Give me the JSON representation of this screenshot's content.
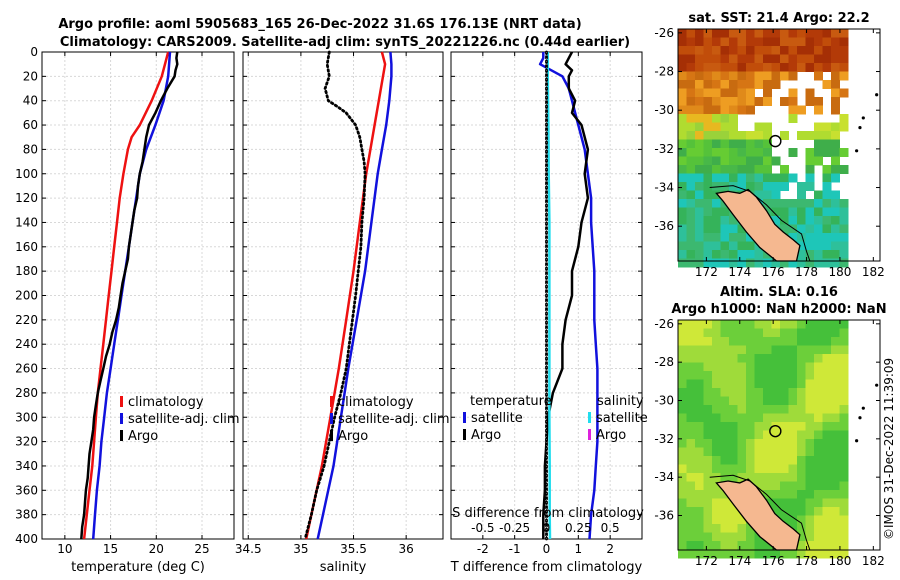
{
  "title": {
    "line1": "Argo profile: aoml 5905683_165 26-Dec-2022 31.6S 176.13E (NRT data)",
    "line2": "Climatology: CARS2009. Satellite-adj clim: synTS_20221226.nc (0.44d earlier)"
  },
  "credit": "©IMOS 31-Dec-2022 11:39:09",
  "colors": {
    "red": "#ee1111",
    "blue": "#1111dd",
    "black": "#000000",
    "cyan": "#22ddee",
    "magenta": "#dd22dd",
    "grid": "#d8d8d8"
  },
  "chart_data": [
    {
      "type": "line",
      "id": "temperature",
      "xlabel": "temperature (deg C)",
      "ylabel": "",
      "xlim": [
        7.5,
        28.5
      ],
      "ylim": [
        400,
        0
      ],
      "xticks": [
        10,
        15,
        20,
        25
      ],
      "yticks": [
        0,
        20,
        40,
        60,
        80,
        100,
        120,
        140,
        160,
        180,
        200,
        220,
        240,
        260,
        280,
        300,
        320,
        340,
        360,
        380,
        400
      ],
      "legend": {
        "placement": "bottom-right",
        "entries": [
          "climatology",
          "satellite-adj. clim",
          "Argo"
        ]
      },
      "series": [
        {
          "name": "climatology",
          "color": "red",
          "dash": "solid",
          "depth": [
            0,
            20,
            40,
            60,
            70,
            80,
            100,
            120,
            140,
            160,
            180,
            200,
            220,
            240,
            260,
            280,
            300,
            320,
            340,
            360,
            380,
            400
          ],
          "values": [
            21.3,
            20.6,
            19.5,
            18.2,
            17.3,
            16.9,
            16.4,
            16.0,
            15.7,
            15.4,
            15.1,
            14.8,
            14.5,
            14.2,
            13.9,
            13.6,
            13.4,
            13.2,
            13.0,
            12.7,
            12.4,
            12.1
          ]
        },
        {
          "name": "satellite-adj. clim",
          "color": "blue",
          "dash": "solid",
          "depth": [
            0,
            20,
            40,
            60,
            80,
            100,
            120,
            140,
            160,
            180,
            200,
            220,
            240,
            260,
            280,
            300,
            320,
            340,
            360,
            380,
            400
          ],
          "values": [
            21.5,
            21.3,
            20.8,
            19.9,
            18.9,
            18.2,
            17.8,
            17.4,
            17.0,
            16.6,
            16.2,
            15.8,
            15.4,
            15.0,
            14.6,
            14.3,
            14.0,
            13.8,
            13.5,
            13.3,
            13.1
          ]
        },
        {
          "name": "Argo",
          "color": "black",
          "dash": "solid",
          "depth": [
            0,
            5,
            10,
            15,
            20,
            30,
            40,
            50,
            60,
            70,
            80,
            90,
            100,
            110,
            120,
            130,
            140,
            150,
            160,
            170,
            180,
            190,
            200,
            210,
            220,
            230,
            240,
            250,
            260,
            270,
            280,
            290,
            300,
            310,
            320,
            330,
            340,
            350,
            360,
            370,
            380,
            390,
            400
          ],
          "values": [
            22.3,
            22.2,
            22.3,
            22.1,
            22.0,
            21.2,
            20.5,
            19.9,
            19.2,
            18.9,
            18.7,
            18.5,
            18.2,
            18.0,
            17.9,
            17.6,
            17.4,
            17.2,
            17.0,
            16.9,
            16.6,
            16.3,
            16.1,
            15.9,
            15.6,
            15.2,
            14.9,
            14.5,
            14.2,
            13.9,
            13.6,
            13.4,
            13.2,
            13.1,
            12.9,
            12.7,
            12.6,
            12.5,
            12.3,
            12.2,
            12.1,
            11.9,
            11.8
          ]
        }
      ]
    },
    {
      "type": "line",
      "id": "salinity",
      "xlabel": "salinity",
      "ylabel": "",
      "xlim": [
        34.45,
        36.35
      ],
      "ylim": [
        400,
        0
      ],
      "xticks": [
        34.5,
        35,
        35.5,
        36
      ],
      "legend": {
        "placement": "bottom-right",
        "entries": [
          "climatology",
          "satellite-adj. clim",
          "Argo"
        ]
      },
      "series": [
        {
          "name": "climatology",
          "color": "red",
          "dash": "solid",
          "depth": [
            0,
            10,
            20,
            40,
            60,
            80,
            100,
            140,
            180,
            220,
            260,
            300,
            340,
            380,
            400
          ],
          "values": [
            35.77,
            35.8,
            35.78,
            35.74,
            35.7,
            35.66,
            35.62,
            35.56,
            35.5,
            35.43,
            35.36,
            35.28,
            35.2,
            35.1,
            35.05
          ]
        },
        {
          "name": "satellite-adj. clim",
          "color": "blue",
          "dash": "solid",
          "depth": [
            0,
            10,
            20,
            40,
            60,
            80,
            100,
            140,
            180,
            220,
            260,
            300,
            340,
            380,
            400
          ],
          "values": [
            35.85,
            35.86,
            35.86,
            35.84,
            35.81,
            35.77,
            35.73,
            35.67,
            35.61,
            35.53,
            35.45,
            35.38,
            35.31,
            35.21,
            35.16
          ]
        },
        {
          "name": "Argo",
          "color": "black",
          "dash": "dotted",
          "depth": [
            0,
            10,
            20,
            30,
            40,
            45,
            50,
            60,
            70,
            80,
            90,
            100,
            120,
            140,
            160,
            200,
            240,
            260,
            280,
            300,
            320,
            340,
            360,
            380,
            400
          ],
          "values": [
            35.27,
            35.25,
            35.27,
            35.23,
            35.26,
            35.35,
            35.43,
            35.52,
            35.56,
            35.58,
            35.6,
            35.61,
            35.6,
            35.58,
            35.57,
            35.52,
            35.46,
            35.43,
            35.38,
            35.32,
            35.27,
            35.22,
            35.15,
            35.1,
            35.04
          ]
        }
      ]
    },
    {
      "type": "line",
      "id": "difference",
      "xlabel": "T difference from climatology",
      "xlabel_top": "S difference from climatology",
      "xlim": [
        -3,
        3
      ],
      "ylim": [
        400,
        0
      ],
      "xticks": [
        -2,
        -1,
        0,
        1,
        2
      ],
      "xticks_s": [
        "-0.5",
        "-0.25",
        "0",
        "0.25",
        "0.5"
      ],
      "legend_temperature": {
        "title": "temperature",
        "entries": [
          "satellite",
          "Argo"
        ]
      },
      "legend_salinity": {
        "title": "salinity",
        "entries": [
          "satellite",
          "Argo"
        ]
      },
      "series": [
        {
          "name": "T satellite",
          "color": "blue",
          "dash": "solid",
          "depth": [
            0,
            5,
            10,
            20,
            30,
            40,
            60,
            80,
            100,
            120,
            140,
            160,
            180,
            200,
            220,
            240,
            260,
            280,
            300,
            320,
            340,
            360,
            380,
            400
          ],
          "values": [
            -0.1,
            -0.1,
            -0.2,
            0.5,
            0.7,
            0.8,
            1.0,
            1.2,
            1.3,
            1.4,
            1.4,
            1.45,
            1.5,
            1.5,
            1.5,
            1.55,
            1.6,
            1.6,
            1.6,
            1.6,
            1.55,
            1.5,
            1.4,
            1.35
          ]
        },
        {
          "name": "T Argo",
          "color": "black",
          "dash": "solid",
          "depth": [
            0,
            5,
            10,
            15,
            20,
            30,
            40,
            50,
            60,
            80,
            100,
            120,
            140,
            160,
            180,
            200,
            220,
            240,
            260,
            280,
            300,
            320,
            340,
            360,
            380,
            400
          ],
          "values": [
            0.8,
            0.7,
            0.6,
            0.8,
            0.7,
            0.7,
            0.9,
            0.8,
            1.1,
            1.3,
            1.2,
            1.3,
            1.1,
            1.0,
            0.8,
            0.8,
            0.6,
            0.5,
            0.5,
            0.2,
            0.05,
            0.0,
            -0.05,
            -0.05,
            -0.1,
            -0.1
          ]
        },
        {
          "name": "S satellite",
          "color": "cyan",
          "dash": "solid",
          "depth": [
            0,
            20,
            40,
            60,
            100,
            140,
            180,
            220,
            260,
            300,
            340,
            380,
            400
          ],
          "values": [
            0.04,
            0.04,
            0.05,
            0.06,
            0.07,
            0.09,
            0.09,
            0.09,
            0.09,
            0.09,
            0.1,
            0.1,
            0.11
          ]
        },
        {
          "name": "S Argo",
          "color": "black",
          "dash": "dotted",
          "depth": [
            0,
            40,
            80,
            120,
            160,
            200,
            240,
            280,
            320,
            360,
            400
          ],
          "values": [
            0,
            0,
            0,
            0,
            0,
            0,
            0,
            0,
            0,
            0,
            0
          ]
        }
      ]
    },
    {
      "type": "heatmap",
      "id": "sst_map",
      "title": "sat. SST: 21.4 Argo: 22.2",
      "xticks": [
        172,
        174,
        176,
        178,
        180,
        182
      ],
      "yticks": [
        -26,
        -28,
        -30,
        -32,
        -34,
        -36
      ],
      "xlim": [
        170.3,
        182.4
      ],
      "ylim": [
        -37.8,
        -25.8
      ],
      "marker": {
        "lon": 176.13,
        "lat": -31.6
      }
    },
    {
      "type": "heatmap",
      "id": "sla_map",
      "title": "Altim. SLA: 0.16",
      "subtitle": "Argo h1000: NaN h2000: NaN",
      "xticks": [
        172,
        174,
        176,
        178,
        180,
        182
      ],
      "yticks": [
        -26,
        -28,
        -30,
        -32,
        -34,
        -36
      ],
      "xlim": [
        170.3,
        182.4
      ],
      "ylim": [
        -37.8,
        -25.8
      ],
      "marker": {
        "lon": 176.13,
        "lat": -31.6
      }
    }
  ]
}
